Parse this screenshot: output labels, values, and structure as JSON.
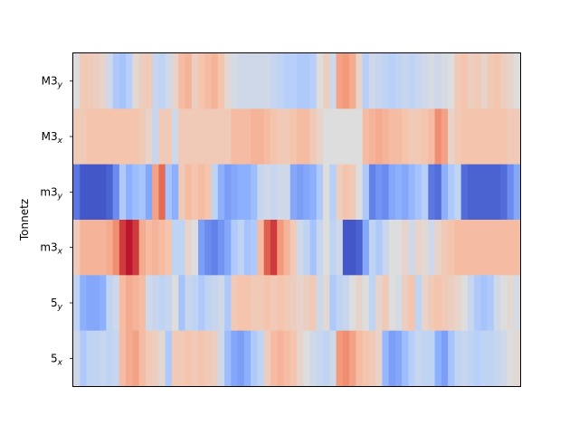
{
  "chart_data": {
    "type": "heatmap",
    "title": "",
    "xlabel": "",
    "ylabel": "Tonnetz",
    "colormap": "coolwarm",
    "vmin": -1.0,
    "vmax": 1.0,
    "rows": [
      {
        "base": "M3",
        "sub": "y"
      },
      {
        "base": "M3",
        "sub": "x"
      },
      {
        "base": "m3",
        "sub": "y"
      },
      {
        "base": "m3",
        "sub": "x"
      },
      {
        "base": "5",
        "sub": "y"
      },
      {
        "base": "5",
        "sub": "x"
      }
    ],
    "n_columns": 68,
    "values": [
      [
        0.0,
        0.2,
        0.2,
        0.15,
        0.1,
        -0.1,
        -0.3,
        -0.35,
        -0.25,
        0.05,
        0.15,
        0.2,
        -0.15,
        -0.2,
        -0.1,
        0.1,
        0.3,
        0.35,
        0.15,
        0.25,
        0.3,
        0.35,
        0.25,
        0.05,
        -0.05,
        -0.1,
        -0.1,
        -0.1,
        -0.1,
        -0.1,
        -0.15,
        -0.2,
        -0.25,
        -0.25,
        -0.3,
        -0.3,
        -0.25,
        0.0,
        0.15,
        -0.1,
        0.45,
        0.5,
        0.4,
        0.1,
        -0.25,
        -0.1,
        -0.15,
        -0.2,
        -0.25,
        -0.2,
        -0.15,
        -0.2,
        -0.15,
        -0.1,
        -0.05,
        -0.1,
        -0.05,
        0.0,
        0.2,
        0.25,
        0.15,
        0.2,
        0.1,
        0.2,
        0.25,
        0.15,
        0.1,
        0.0
      ],
      [
        0.2,
        0.2,
        0.25,
        0.25,
        0.25,
        0.25,
        0.25,
        0.25,
        0.25,
        0.25,
        0.2,
        0.1,
        -0.15,
        0.2,
        0.2,
        -0.1,
        0.2,
        0.2,
        0.2,
        0.2,
        0.2,
        0.2,
        0.2,
        0.2,
        0.3,
        0.3,
        0.3,
        0.35,
        0.35,
        0.3,
        0.25,
        0.2,
        0.2,
        0.25,
        0.3,
        0.3,
        0.2,
        0.1,
        0.0,
        0.0,
        0.0,
        0.0,
        0.0,
        0.0,
        0.3,
        0.35,
        0.4,
        0.35,
        0.3,
        0.3,
        0.25,
        0.2,
        0.2,
        0.25,
        0.3,
        0.55,
        0.45,
        0.1,
        0.2,
        0.25,
        0.25,
        0.25,
        0.25,
        0.25,
        0.25,
        0.25,
        0.2,
        0.2
      ],
      [
        -0.8,
        -0.95,
        -0.95,
        -0.95,
        -0.95,
        -0.9,
        -0.7,
        -0.3,
        -0.5,
        -0.4,
        -0.35,
        -0.55,
        0.45,
        0.7,
        -0.35,
        -0.5,
        0.2,
        0.3,
        0.25,
        0.3,
        0.25,
        -0.2,
        -0.5,
        -0.6,
        -0.55,
        -0.5,
        -0.5,
        -0.4,
        -0.15,
        -0.1,
        -0.15,
        -0.1,
        -0.1,
        -0.55,
        -0.6,
        -0.55,
        -0.5,
        -0.3,
        0.0,
        -0.25,
        0.15,
        0.25,
        0.2,
        0.0,
        -0.3,
        -0.75,
        -0.65,
        -0.7,
        -0.55,
        -0.5,
        -0.55,
        -0.45,
        -0.35,
        -0.25,
        -0.8,
        -0.85,
        -0.5,
        -0.3,
        -0.2,
        -0.85,
        -0.9,
        -0.9,
        -0.9,
        -0.9,
        -0.9,
        -0.85,
        -0.7,
        -0.55
      ],
      [
        0.2,
        0.35,
        0.35,
        0.35,
        0.35,
        0.4,
        0.55,
        0.85,
        0.95,
        0.85,
        0.4,
        0.3,
        0.35,
        0.3,
        0.25,
        -0.2,
        -0.2,
        0.1,
        0.0,
        -0.6,
        -0.7,
        -0.75,
        -0.65,
        -0.55,
        -0.3,
        -0.2,
        -0.35,
        -0.3,
        0.3,
        0.75,
        0.85,
        0.5,
        0.35,
        0.2,
        -0.1,
        -0.2,
        -0.35,
        -0.15,
        0.0,
        -0.2,
        -0.1,
        -0.95,
        -0.95,
        -0.9,
        -0.55,
        -0.2,
        -0.3,
        -0.15,
        0.0,
        0.0,
        0.1,
        -0.1,
        0.1,
        0.05,
        -0.1,
        0.1,
        0.2,
        0.25,
        0.3,
        0.3,
        0.3,
        0.3,
        0.3,
        0.3,
        0.3,
        0.3,
        0.3,
        0.3
      ],
      [
        -0.2,
        -0.5,
        -0.55,
        -0.55,
        -0.5,
        -0.2,
        -0.1,
        0.3,
        0.4,
        0.35,
        0.3,
        -0.1,
        -0.15,
        -0.2,
        -0.15,
        0.0,
        -0.35,
        -0.15,
        -0.2,
        -0.3,
        -0.2,
        -0.15,
        -0.1,
        -0.3,
        0.2,
        0.25,
        0.25,
        0.2,
        0.2,
        0.25,
        0.2,
        0.25,
        0.2,
        0.15,
        0.1,
        0.15,
        0.2,
        -0.1,
        0.05,
        -0.3,
        -0.2,
        -0.15,
        0.0,
        0.1,
        0.0,
        -0.2,
        0.1,
        0.2,
        0.0,
        -0.05,
        0.15,
        0.25,
        -0.2,
        0.1,
        0.2,
        0.25,
        0.2,
        0.15,
        0.1,
        0.0,
        -0.15,
        -0.3,
        -0.35,
        -0.3,
        -0.1,
        0.0,
        0.05,
        -0.05
      ],
      [
        -0.1,
        -0.3,
        -0.2,
        -0.2,
        -0.15,
        -0.2,
        -0.15,
        0.3,
        0.4,
        0.45,
        0.3,
        0.2,
        0.15,
        0.05,
        -0.3,
        0.2,
        0.2,
        0.25,
        0.2,
        0.25,
        0.2,
        0.15,
        -0.1,
        -0.4,
        -0.55,
        -0.6,
        -0.5,
        -0.3,
        -0.2,
        0.15,
        0.3,
        0.35,
        0.3,
        0.25,
        0.1,
        0.0,
        -0.1,
        -0.15,
        -0.2,
        -0.1,
        0.5,
        0.55,
        0.45,
        0.3,
        0.25,
        0.2,
        0.1,
        -0.45,
        -0.6,
        -0.55,
        -0.4,
        -0.25,
        -0.15,
        -0.2,
        -0.2,
        -0.5,
        -0.6,
        -0.35,
        -0.2,
        -0.15,
        -0.2,
        -0.25,
        -0.2,
        -0.2,
        -0.15,
        -0.1,
        0.0,
        0.05
      ]
    ]
  }
}
